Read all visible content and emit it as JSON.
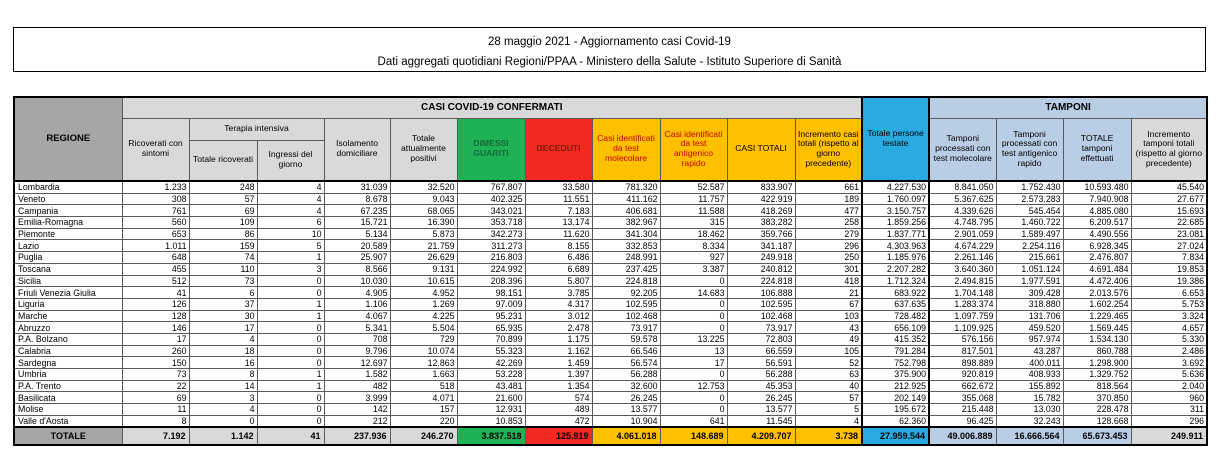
{
  "title": {
    "line1": "28 maggio 2021 - Aggiornamento casi Covid-19",
    "line2": "Dati aggregati quotidiani Regioni/PPAA - Ministero della Salute - Istituto Superiore di Sanità"
  },
  "colors": {
    "green": "#1FB254",
    "green-text": "#17693B",
    "red": "#F02A1E",
    "red-text": "#7E1A10",
    "gold": "#FFC000",
    "gold-red-text": "#C00000",
    "cyan": "#29ABE2",
    "lightblue": "#B9CDE5",
    "gray-header": "#A6A6A6",
    "light-gray": "#D9D9D9"
  },
  "table": {
    "group_headers": {
      "confermati": "CASI COVID-19 CONFERMATI",
      "tamponi": "TAMPONI",
      "terapia": "Terapia intensiva"
    },
    "columns": {
      "regione": "REGIONE",
      "ricoverati": "Ricoverati con sintomi",
      "totale_ricoverati": "Totale ricoverati",
      "ingressi": "Ingressi del giorno",
      "isolamento": "Isolamento domiciliare",
      "attualmente_positivi": "Totale attualmente positivi",
      "dimessi": "DIMESSI GUARITI",
      "deceduti": "DECEDUTI",
      "casi_molecolare": "Casi identificati da test molecolare",
      "casi_antigenico": "Casi identificati da test antigenico rapido",
      "casi_totali": "CASI TOTALI",
      "incremento_casi": "Incremento casi totali (rispetto al giorno precedente)",
      "persone_testate": "Totale persone testate",
      "tamponi_molecolare": "Tamponi processati con test molecolare",
      "tamponi_antigenico": "Tamponi processati con test antigenico rapido",
      "totale_tamponi": "TOTALE tamponi effettuati",
      "incremento_tamponi": "Incremento tamponi totali (rispetto al giorno precedente)"
    },
    "rows": [
      {
        "name": "Lombardia",
        "values": [
          "1.233",
          "248",
          "4",
          "31.039",
          "32.520",
          "767.807",
          "33.580",
          "781.320",
          "52.587",
          "833.907",
          "661",
          "4.227.530",
          "8.841.050",
          "1.752.430",
          "10.593.480",
          "45.540"
        ]
      },
      {
        "name": "Veneto",
        "values": [
          "308",
          "57",
          "4",
          "8.678",
          "9.043",
          "402.325",
          "11.551",
          "411.162",
          "11.757",
          "422.919",
          "189",
          "1.760.097",
          "5.367.625",
          "2.573.283",
          "7.940.908",
          "27.677"
        ]
      },
      {
        "name": "Campania",
        "values": [
          "761",
          "69",
          "4",
          "67.235",
          "68.065",
          "343.021",
          "7.183",
          "406.681",
          "11.588",
          "418.269",
          "477",
          "3.150.757",
          "4.339.626",
          "545.454",
          "4.885.080",
          "15.693"
        ]
      },
      {
        "name": "Emilia-Romagna",
        "values": [
          "560",
          "109",
          "6",
          "15.721",
          "16.390",
          "353.718",
          "13.174",
          "382.967",
          "315",
          "383.282",
          "258",
          "1.859.256",
          "4.748.795",
          "1.460.722",
          "6.209.517",
          "22.685"
        ]
      },
      {
        "name": "Piemonte",
        "values": [
          "653",
          "86",
          "10",
          "5.134",
          "5.873",
          "342.273",
          "11.620",
          "341.304",
          "18.462",
          "359.766",
          "279",
          "1.837.771",
          "2.901.059",
          "1.589.497",
          "4.490.556",
          "23.081"
        ]
      },
      {
        "name": "Lazio",
        "values": [
          "1.011",
          "159",
          "5",
          "20.589",
          "21.759",
          "311.273",
          "8.155",
          "332.853",
          "8.334",
          "341.187",
          "296",
          "4.303.963",
          "4.674.229",
          "2.254.116",
          "6.928.345",
          "27.024"
        ]
      },
      {
        "name": "Puglia",
        "values": [
          "648",
          "74",
          "1",
          "25.907",
          "26.629",
          "216.803",
          "6.486",
          "248.991",
          "927",
          "249.918",
          "250",
          "1.185.976",
          "2.261.146",
          "215.661",
          "2.476.807",
          "7.834"
        ]
      },
      {
        "name": "Toscana",
        "values": [
          "455",
          "110",
          "3",
          "8.566",
          "9.131",
          "224.992",
          "6.689",
          "237.425",
          "3.387",
          "240.812",
          "301",
          "2.207.282",
          "3.640.360",
          "1.051.124",
          "4.691.484",
          "19.853"
        ]
      },
      {
        "name": "Sicilia",
        "values": [
          "512",
          "73",
          "0",
          "10.030",
          "10.615",
          "208.396",
          "5.807",
          "224.818",
          "0",
          "224.818",
          "418",
          "1.712.324",
          "2.494.815",
          "1.977.591",
          "4.472.406",
          "19.386"
        ]
      },
      {
        "name": "Friuli Venezia Giulia",
        "values": [
          "41",
          "6",
          "0",
          "4.905",
          "4.952",
          "98.151",
          "3.785",
          "92.205",
          "14.683",
          "106.888",
          "21",
          "683.922",
          "1.704.148",
          "309.428",
          "2.013.576",
          "6.653"
        ]
      },
      {
        "name": "Liguria",
        "values": [
          "126",
          "37",
          "1",
          "1.106",
          "1.269",
          "97.009",
          "4.317",
          "102.595",
          "0",
          "102.595",
          "67",
          "637.635",
          "1.283.374",
          "318.880",
          "1.602.254",
          "5.753"
        ]
      },
      {
        "name": "Marche",
        "values": [
          "128",
          "30",
          "1",
          "4.067",
          "4.225",
          "95.231",
          "3.012",
          "102.468",
          "0",
          "102.468",
          "103",
          "728.482",
          "1.097.759",
          "131.706",
          "1.229.465",
          "3.324"
        ]
      },
      {
        "name": "Abruzzo",
        "values": [
          "146",
          "17",
          "0",
          "5.341",
          "5.504",
          "65.935",
          "2.478",
          "73.917",
          "0",
          "73.917",
          "43",
          "656.109",
          "1.109.925",
          "459.520",
          "1.569.445",
          "4.657"
        ]
      },
      {
        "name": "P.A. Bolzano",
        "values": [
          "17",
          "4",
          "0",
          "708",
          "729",
          "70.899",
          "1.175",
          "59.578",
          "13.225",
          "72.803",
          "49",
          "415.352",
          "576.156",
          "957.974",
          "1.534.130",
          "5.330"
        ]
      },
      {
        "name": "Calabria",
        "values": [
          "260",
          "18",
          "0",
          "9.796",
          "10.074",
          "55.323",
          "1.162",
          "66.546",
          "13",
          "66.559",
          "105",
          "791.284",
          "817.501",
          "43.287",
          "860.788",
          "2.486"
        ]
      },
      {
        "name": "Sardegna",
        "values": [
          "150",
          "16",
          "0",
          "12.697",
          "12.863",
          "42.269",
          "1.459",
          "56.574",
          "17",
          "56.591",
          "52",
          "752.798",
          "898.889",
          "400.011",
          "1.298.900",
          "3.692"
        ]
      },
      {
        "name": "Umbria",
        "values": [
          "73",
          "8",
          "1",
          "1.582",
          "1.663",
          "53.228",
          "1.397",
          "56.288",
          "0",
          "56.288",
          "63",
          "375.900",
          "920.819",
          "408.933",
          "1.329.752",
          "5.636"
        ]
      },
      {
        "name": "P.A. Trento",
        "values": [
          "22",
          "14",
          "1",
          "482",
          "518",
          "43.481",
          "1.354",
          "32.600",
          "12.753",
          "45.353",
          "40",
          "212.925",
          "662.672",
          "155.892",
          "818.564",
          "2.040"
        ]
      },
      {
        "name": "Basilicata",
        "values": [
          "69",
          "3",
          "0",
          "3.999",
          "4.071",
          "21.600",
          "574",
          "26.245",
          "0",
          "26.245",
          "57",
          "202.149",
          "355.068",
          "15.782",
          "370.850",
          "960"
        ]
      },
      {
        "name": "Molise",
        "values": [
          "11",
          "4",
          "0",
          "142",
          "157",
          "12.931",
          "489",
          "13.577",
          "0",
          "13.577",
          "5",
          "195.672",
          "215.448",
          "13.030",
          "228.478",
          "311"
        ]
      },
      {
        "name": "Valle d'Aosta",
        "values": [
          "8",
          "0",
          "0",
          "212",
          "220",
          "10.853",
          "472",
          "10.904",
          "641",
          "11.545",
          "4",
          "62.360",
          "96.425",
          "32.243",
          "128.668",
          "296"
        ]
      }
    ],
    "total": {
      "label": "TOTALE",
      "values": [
        "7.192",
        "1.142",
        "41",
        "237.936",
        "246.270",
        "3.837.518",
        "125.919",
        "4.061.018",
        "148.689",
        "4.209.707",
        "3.738",
        "27.959.544",
        "49.006.889",
        "16.666.564",
        "65.673.453",
        "249.911"
      ]
    }
  }
}
